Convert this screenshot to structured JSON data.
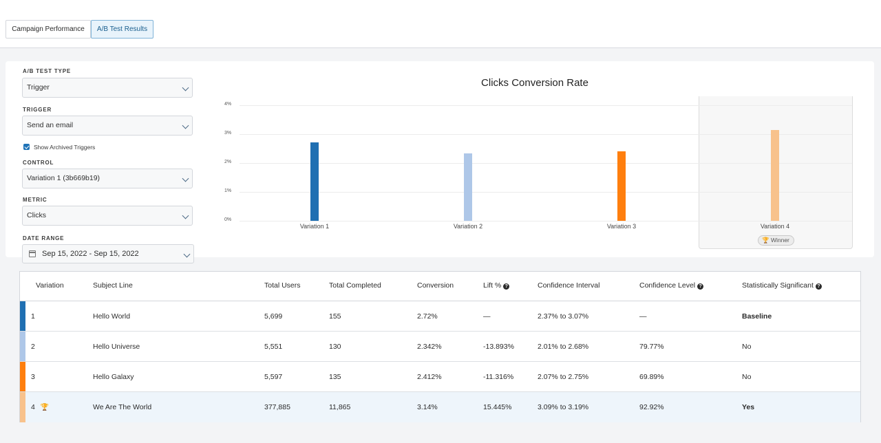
{
  "tabs": [
    {
      "label": "Campaign Performance",
      "active": false
    },
    {
      "label": "A/B Test Results",
      "active": true
    }
  ],
  "filters": {
    "ab_test_type": {
      "label": "A/B TEST TYPE",
      "value": "Trigger"
    },
    "trigger": {
      "label": "TRIGGER",
      "value": "Send an email"
    },
    "show_archived": {
      "label": "Show Archived Triggers",
      "checked": true
    },
    "control": {
      "label": "CONTROL",
      "value": "Variation 1 (3b669b19)"
    },
    "metric": {
      "label": "METRIC",
      "value": "Clicks"
    },
    "date_range": {
      "label": "DATE RANGE",
      "value": "Sep 15, 2022 - Sep 15, 2022"
    }
  },
  "chart_data": {
    "type": "bar",
    "title": "Clicks Conversion Rate",
    "categories": [
      "Variation 1",
      "Variation 2",
      "Variation 3",
      "Variation 4"
    ],
    "values": [
      2.72,
      2.342,
      2.412,
      3.14
    ],
    "colors": [
      "#1f6fb2",
      "#aec7e8",
      "#ff7f0e",
      "#f8c28c"
    ],
    "ylim": [
      0,
      4
    ],
    "yticks": [
      "0%",
      "1%",
      "2%",
      "3%",
      "4%"
    ],
    "ytick_values": [
      0,
      1,
      2,
      3,
      4
    ],
    "highlight": {
      "category": "Variation 4",
      "badge": "Winner"
    },
    "grid": true
  },
  "table": {
    "headers": {
      "variation": "Variation",
      "subject": "Subject Line",
      "users": "Total Users",
      "completed": "Total Completed",
      "conversion": "Conversion",
      "lift": "Lift %",
      "ci": "Confidence Interval",
      "cl": "Confidence Level",
      "sig": "Statistically Significant"
    },
    "rows": [
      {
        "variation": "1",
        "subject": "Hello World",
        "users": "5,699",
        "completed": "155",
        "conversion": "2.72%",
        "lift": "—",
        "ci": "2.37% to 3.07%",
        "cl": "—",
        "sig": "Baseline",
        "color": "#1f6fb2"
      },
      {
        "variation": "2",
        "subject": "Hello Universe",
        "users": "5,551",
        "completed": "130",
        "conversion": "2.342%",
        "lift": "-13.893%",
        "ci": "2.01% to 2.68%",
        "cl": "79.77%",
        "sig": "No",
        "color": "#aec7e8"
      },
      {
        "variation": "3",
        "subject": "Hello Galaxy",
        "users": "5,597",
        "completed": "135",
        "conversion": "2.412%",
        "lift": "-11.316%",
        "ci": "2.07% to 2.75%",
        "cl": "69.89%",
        "sig": "No",
        "color": "#ff7f0e"
      },
      {
        "variation": "4",
        "subject": "We Are The World",
        "users": "377,885",
        "completed": "11,865",
        "conversion": "3.14%",
        "lift": "15.445%",
        "ci": "3.09% to 3.19%",
        "cl": "92.92%",
        "sig": "Yes",
        "color": "#f8c28c"
      }
    ]
  }
}
